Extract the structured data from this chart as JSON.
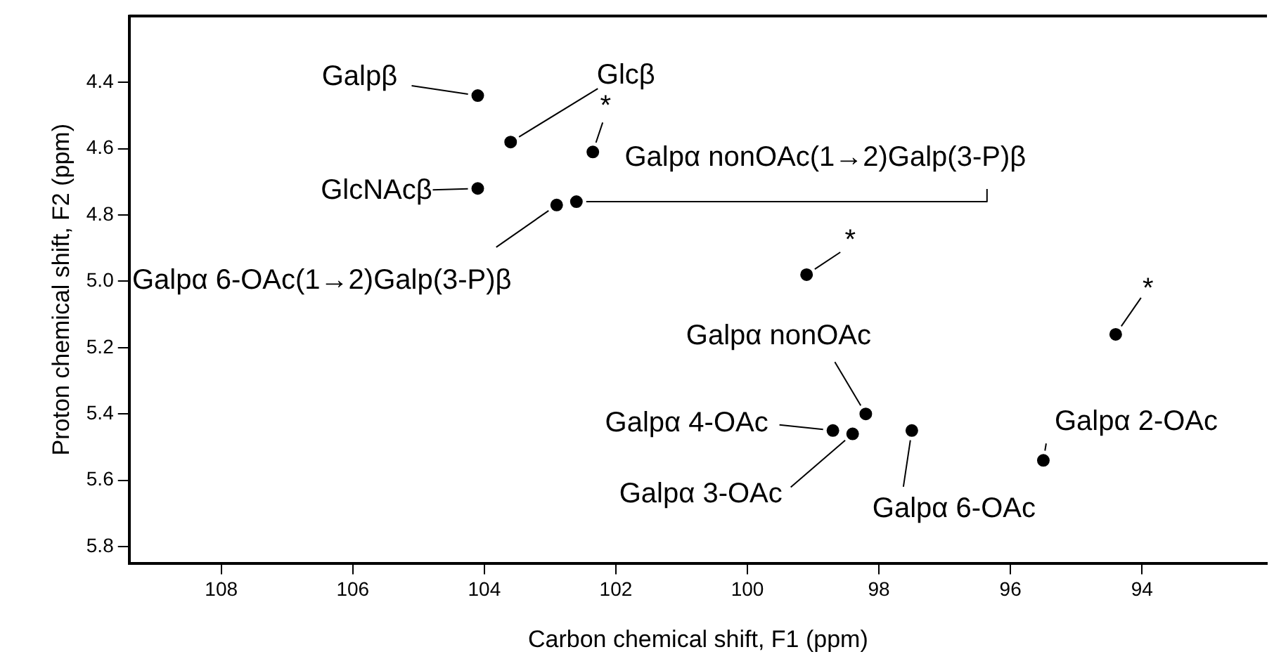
{
  "chart_data": {
    "type": "scatter",
    "xlabel": "Carbon chemical shift, F1 (ppm)",
    "ylabel": "Proton chemical shift, F2 (ppm)",
    "x": [
      104.1,
      103.6,
      102.35,
      104.1,
      102.9,
      102.6,
      99.1,
      94.4,
      98.2,
      98.7,
      98.4,
      97.5,
      95.5
    ],
    "series": [
      {
        "color": "#000000",
        "values": [
          4.44,
          4.58,
          4.61,
          4.72,
          4.77,
          4.76,
          4.98,
          5.16,
          5.4,
          5.45,
          5.46,
          5.45,
          5.54
        ]
      }
    ],
    "xlim": [
      109.4,
      92.1
    ],
    "xticks": [
      108,
      106,
      104,
      102,
      100,
      98,
      96,
      94
    ],
    "ylim": [
      5.85,
      4.2
    ],
    "yticks": [
      4.4,
      4.6,
      4.8,
      {
        "value": 5,
        "label": "5.0"
      },
      5.2,
      5.4,
      5.6,
      5.8
    ],
    "marker": "circle",
    "grid": false,
    "legend": false,
    "annotations": [
      {
        "text": "Galpβ",
        "x": 104.1,
        "y": 4.44
      },
      {
        "text": "Glcβ",
        "x": 103.6,
        "y": 4.58
      },
      {
        "text": "*",
        "x": 102.35,
        "y": 4.61
      },
      {
        "text": "GlcNAcβ",
        "x": 104.1,
        "y": 4.72
      },
      {
        "text": "Galpα 6-OAc(1→2)Galp(3-P)β",
        "x": 102.9,
        "y": 4.77
      },
      {
        "text": "Galpα nonOAc(1→2)Galp(3-P)β",
        "x": 102.6,
        "y": 4.76
      },
      {
        "text": "*",
        "x": 99.1,
        "y": 4.98
      },
      {
        "text": "*",
        "x": 94.4,
        "y": 5.16
      },
      {
        "text": "Galpα nonOAc",
        "x": 98.2,
        "y": 5.4
      },
      {
        "text": "Galpα 4-OAc",
        "x": 98.7,
        "y": 5.45
      },
      {
        "text": "Galpα 3-OAc",
        "x": 98.4,
        "y": 5.46
      },
      {
        "text": "Galpα 6-OAc",
        "x": 97.5,
        "y": 5.45
      },
      {
        "text": "Galpα 2-OAc",
        "x": 95.5,
        "y": 5.54
      }
    ]
  }
}
